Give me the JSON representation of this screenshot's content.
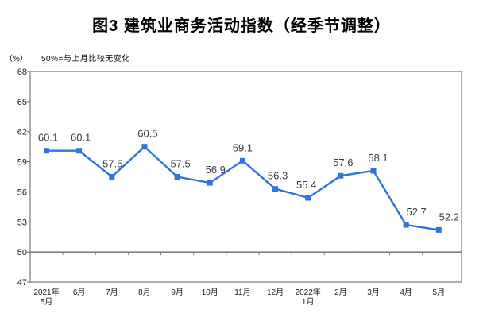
{
  "title": "图3 建筑业商务活动指数（经季节调整）",
  "y_axis_unit": "（%）",
  "baseline_note": "50%=与上月比较无变化",
  "colors": {
    "line": "#2E74D9",
    "marker": "#2E74D9",
    "plot_border": "#8C8C8C",
    "baseline_axis": "#7F7F7F",
    "tick": "#666666",
    "axis_text": "#1A1A1A",
    "data_label_text": "#3D3D3D"
  },
  "chart_data": {
    "type": "line",
    "title": "图3 建筑业商务活动指数（经季节调整）",
    "ylabel": "（%）",
    "note": "50%=与上月比较无变化",
    "categories": [
      "2021年\n5月",
      "6月",
      "7月",
      "8月",
      "9月",
      "10月",
      "11月",
      "12月",
      "2022年\n1月",
      "2月",
      "3月",
      "4月",
      "5月"
    ],
    "values": [
      60.1,
      60.1,
      57.5,
      60.5,
      57.5,
      56.9,
      59.1,
      56.3,
      55.4,
      57.6,
      58.1,
      52.7,
      52.2
    ],
    "data_labels": [
      "60.1",
      "60.1",
      "57.5",
      "60.5",
      "57.5",
      "56.9",
      "59.1",
      "56.3",
      "55.4",
      "57.6",
      "58.1",
      "52.7",
      "52.2"
    ],
    "label_dx": [
      2,
      2,
      1,
      4,
      4,
      7,
      0,
      3,
      -2,
      3,
      6,
      13,
      13
    ],
    "ylim": [
      47,
      68
    ],
    "yticks": [
      68,
      65,
      62,
      59,
      56,
      53,
      50,
      47
    ],
    "baseline": 50,
    "grid": false,
    "legend": false,
    "marker": "square"
  }
}
